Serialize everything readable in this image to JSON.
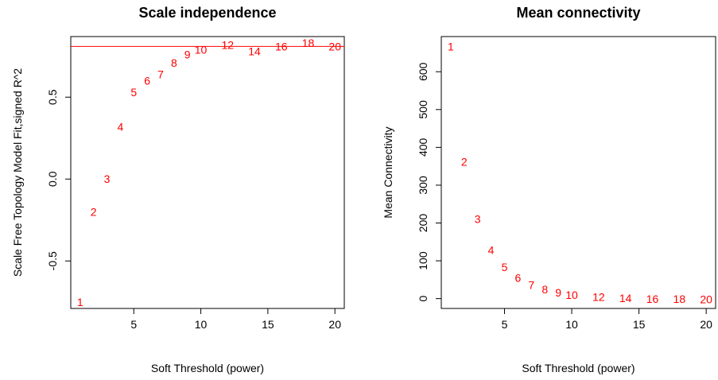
{
  "chart_data": [
    {
      "type": "scatter",
      "title": "Scale independence",
      "xlabel": "Soft Threshold (power)",
      "ylabel": "Scale Free Topology Model Fit,signed R^2",
      "xlim": [
        0.3,
        20.7
      ],
      "ylim": [
        -0.79,
        0.87
      ],
      "x_ticks": [
        5,
        10,
        15,
        20
      ],
      "y_ticks": [
        -0.5,
        0.0,
        0.5
      ],
      "y_tick_labels": [
        "-0.5",
        "0.0",
        "0.5"
      ],
      "reference_line": {
        "y": 0.81,
        "color": "#ff0000"
      },
      "point_color": "#ff0000",
      "points": [
        {
          "label": "1",
          "x": 1,
          "y": -0.75
        },
        {
          "label": "2",
          "x": 2,
          "y": -0.2
        },
        {
          "label": "3",
          "x": 3,
          "y": 0.0
        },
        {
          "label": "4",
          "x": 4,
          "y": 0.32
        },
        {
          "label": "5",
          "x": 5,
          "y": 0.53
        },
        {
          "label": "6",
          "x": 6,
          "y": 0.6
        },
        {
          "label": "7",
          "x": 7,
          "y": 0.64
        },
        {
          "label": "8",
          "x": 8,
          "y": 0.71
        },
        {
          "label": "9",
          "x": 9,
          "y": 0.76
        },
        {
          "label": "10",
          "x": 10,
          "y": 0.79
        },
        {
          "label": "12",
          "x": 12,
          "y": 0.82
        },
        {
          "label": "14",
          "x": 14,
          "y": 0.78
        },
        {
          "label": "16",
          "x": 16,
          "y": 0.81
        },
        {
          "label": "18",
          "x": 18,
          "y": 0.83
        },
        {
          "label": "20",
          "x": 20,
          "y": 0.81
        }
      ]
    },
    {
      "type": "scatter",
      "title": "Mean connectivity",
      "xlabel": "Soft Threshold (power)",
      "ylabel": "Mean Connectivity",
      "xlim": [
        0.3,
        20.7
      ],
      "ylim": [
        -26,
        693
      ],
      "x_ticks": [
        5,
        10,
        15,
        20
      ],
      "y_ticks": [
        0,
        100,
        200,
        300,
        400,
        500,
        600
      ],
      "y_tick_labels": [
        "0",
        "100",
        "200",
        "300",
        "400",
        "500",
        "600"
      ],
      "point_color": "#ff0000",
      "points": [
        {
          "label": "1",
          "x": 1,
          "y": 667
        },
        {
          "label": "2",
          "x": 2,
          "y": 362
        },
        {
          "label": "3",
          "x": 3,
          "y": 210
        },
        {
          "label": "4",
          "x": 4,
          "y": 129
        },
        {
          "label": "5",
          "x": 5,
          "y": 83
        },
        {
          "label": "6",
          "x": 6,
          "y": 55
        },
        {
          "label": "7",
          "x": 7,
          "y": 36
        },
        {
          "label": "8",
          "x": 8,
          "y": 24
        },
        {
          "label": "9",
          "x": 9,
          "y": 16
        },
        {
          "label": "10",
          "x": 10,
          "y": 10
        },
        {
          "label": "12",
          "x": 12,
          "y": 4
        },
        {
          "label": "14",
          "x": 14,
          "y": 1
        },
        {
          "label": "16",
          "x": 16,
          "y": -1
        },
        {
          "label": "18",
          "x": 18,
          "y": -1
        },
        {
          "label": "20",
          "x": 20,
          "y": -2
        }
      ]
    }
  ]
}
